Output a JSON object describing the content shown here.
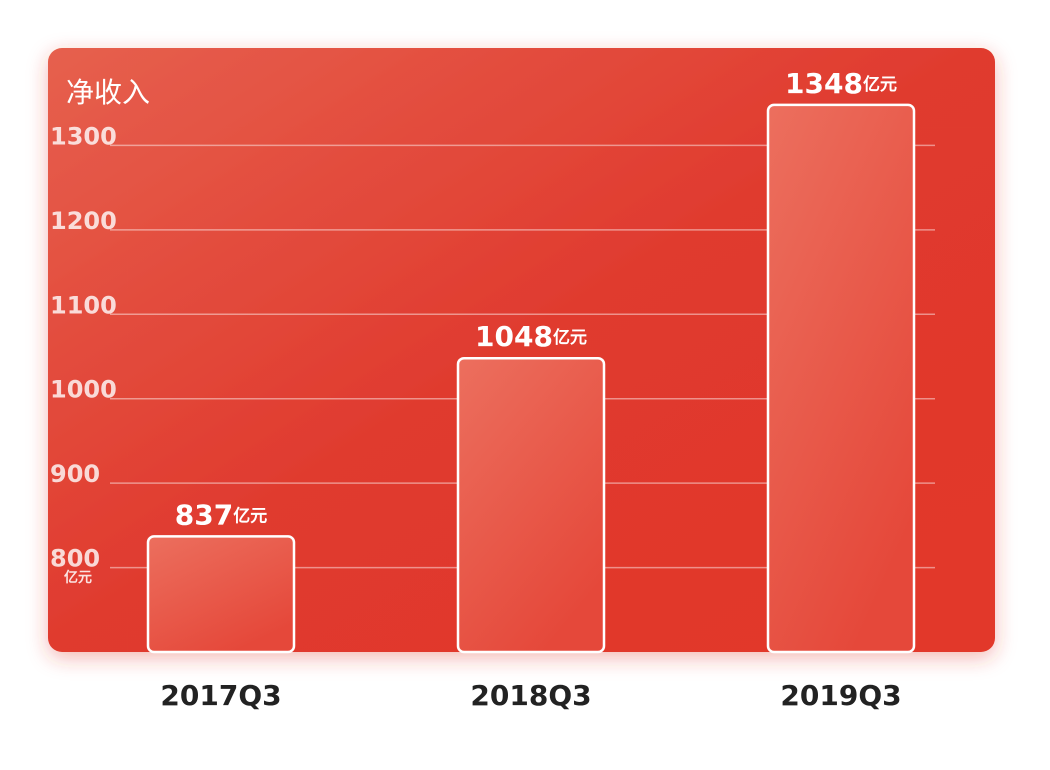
{
  "chart_data": {
    "type": "bar",
    "title": "净收入",
    "y_unit": "亿元",
    "categories": [
      "2017Q3",
      "2018Q3",
      "2019Q3"
    ],
    "values": [
      837,
      1048,
      1348
    ],
    "value_labels": [
      "837亿元",
      "1048亿元",
      "1348亿元"
    ],
    "color": "#e8594a",
    "ylim": [
      700,
      1400
    ],
    "yticks": [
      800,
      900,
      1000,
      1100,
      1200,
      1300
    ],
    "grid": true
  }
}
